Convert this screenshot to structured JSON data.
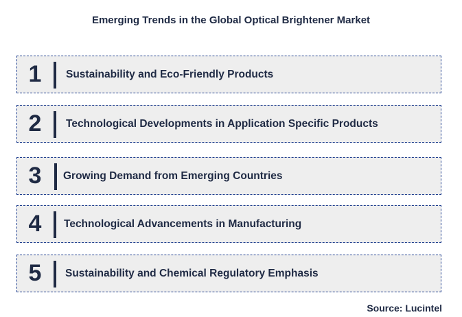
{
  "title": "Emerging Trends in the Global Optical Brightener Market",
  "trends": [
    {
      "number": "1",
      "label": "Sustainability and Eco-Friendly Products"
    },
    {
      "number": "2",
      "label": "Technological Developments in Application Specific Products"
    },
    {
      "number": "3",
      "label": "Growing Demand from Emerging Countries"
    },
    {
      "number": "4",
      "label": "Technological Advancements in Manufacturing"
    },
    {
      "number": "5",
      "label": "Sustainability and Chemical Regulatory Emphasis"
    }
  ],
  "source": "Source: Lucintel",
  "colors": {
    "text": "#1f2a44",
    "box_background": "#eeeeee",
    "box_border": "#1f3f8f"
  }
}
